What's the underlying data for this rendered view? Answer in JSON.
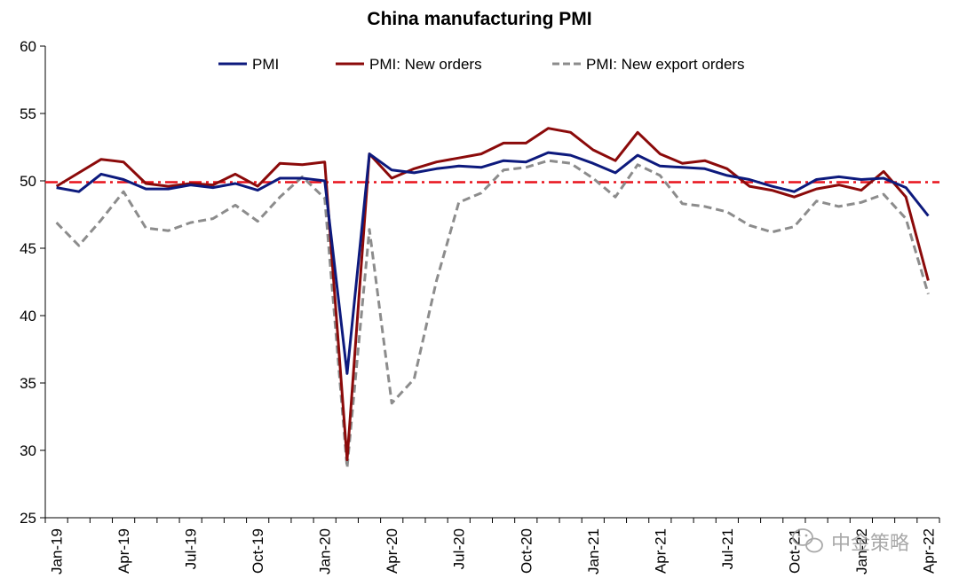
{
  "chart_data": {
    "type": "line",
    "title": "China manufacturing PMI",
    "xlabel": "",
    "ylabel": "",
    "ylim": [
      25,
      60
    ],
    "yticks": [
      25,
      30,
      35,
      40,
      45,
      50,
      55,
      60
    ],
    "grid": false,
    "legend_position": "top",
    "threshold": {
      "value": 49.9,
      "color": "#e8121b",
      "style": "dash-dot"
    },
    "x": [
      "Jan-19",
      "Feb-19",
      "Mar-19",
      "Apr-19",
      "May-19",
      "Jun-19",
      "Jul-19",
      "Aug-19",
      "Sep-19",
      "Oct-19",
      "Nov-19",
      "Dec-19",
      "Jan-20",
      "Feb-20",
      "Mar-20",
      "Apr-20",
      "May-20",
      "Jun-20",
      "Jul-20",
      "Aug-20",
      "Sep-20",
      "Oct-20",
      "Nov-20",
      "Dec-20",
      "Jan-21",
      "Feb-21",
      "Mar-21",
      "Apr-21",
      "May-21",
      "Jun-21",
      "Jul-21",
      "Aug-21",
      "Sep-21",
      "Oct-21",
      "Nov-21",
      "Dec-21",
      "Jan-22",
      "Feb-22",
      "Mar-22",
      "Apr-22"
    ],
    "xtick_labels": [
      "Jan-19",
      "Apr-19",
      "Jul-19",
      "Oct-19",
      "Jan-20",
      "Apr-20",
      "Jul-20",
      "Oct-20",
      "Jan-21",
      "Apr-21",
      "Jul-21",
      "Oct-21",
      "Jan-22",
      "Apr-22"
    ],
    "series": [
      {
        "name": "PMI",
        "color": "#0d1a7d",
        "style": "solid",
        "values": [
          49.5,
          49.2,
          50.5,
          50.1,
          49.4,
          49.4,
          49.7,
          49.5,
          49.8,
          49.3,
          50.2,
          50.2,
          50.0,
          35.7,
          52.0,
          50.8,
          50.6,
          50.9,
          51.1,
          51.0,
          51.5,
          51.4,
          52.1,
          51.9,
          51.3,
          50.6,
          51.9,
          51.1,
          51.0,
          50.9,
          50.4,
          50.1,
          49.6,
          49.2,
          50.1,
          50.3,
          50.1,
          50.2,
          49.5,
          47.4
        ]
      },
      {
        "name": "PMI: New orders",
        "color": "#8b0a0a",
        "style": "solid",
        "values": [
          49.6,
          50.6,
          51.6,
          51.4,
          49.8,
          49.6,
          49.8,
          49.7,
          50.5,
          49.6,
          51.3,
          51.2,
          51.4,
          29.3,
          52.0,
          50.2,
          50.9,
          51.4,
          51.7,
          52.0,
          52.8,
          52.8,
          53.9,
          53.6,
          52.3,
          51.5,
          53.6,
          52.0,
          51.3,
          51.5,
          50.9,
          49.6,
          49.3,
          48.8,
          49.4,
          49.7,
          49.3,
          50.7,
          48.8,
          42.6
        ]
      },
      {
        "name": "PMI: New export orders",
        "color": "#8c8c8c",
        "style": "dashed",
        "values": [
          46.9,
          45.2,
          47.1,
          49.2,
          46.5,
          46.3,
          46.9,
          47.2,
          48.2,
          47.0,
          48.8,
          50.3,
          48.7,
          28.7,
          46.4,
          33.5,
          35.3,
          42.6,
          48.4,
          49.1,
          50.8,
          51.0,
          51.5,
          51.3,
          50.2,
          48.8,
          51.2,
          50.4,
          48.3,
          48.1,
          47.7,
          46.7,
          46.2,
          46.6,
          48.5,
          48.1,
          48.4,
          49.0,
          47.2,
          41.6
        ]
      }
    ]
  },
  "watermark": {
    "text": "中金策略"
  }
}
